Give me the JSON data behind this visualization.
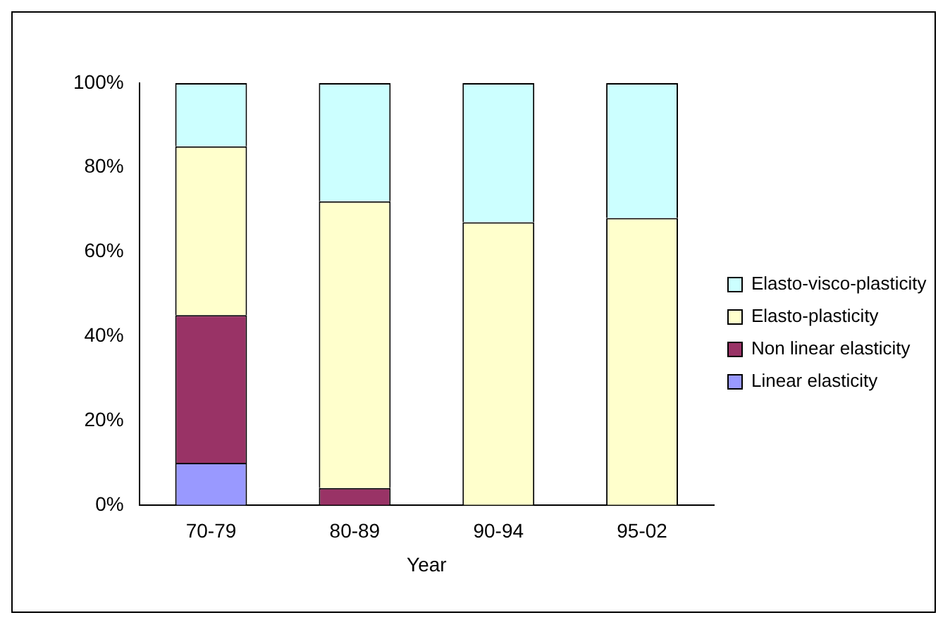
{
  "chart_data": {
    "type": "bar",
    "stacked": true,
    "xlabel": "Year",
    "categories": [
      "70-79",
      "80-89",
      "90-94",
      "95-02"
    ],
    "series": [
      {
        "name": "Linear elasticity",
        "color": "#9999ff",
        "values": [
          10,
          0,
          0,
          0
        ]
      },
      {
        "name": "Non linear elasticity",
        "color": "#993366",
        "values": [
          35,
          4,
          0,
          0
        ]
      },
      {
        "name": "Elasto-plasticity",
        "color": "#ffffcc",
        "values": [
          40,
          68,
          67,
          68
        ]
      },
      {
        "name": "Elasto-visco-plasticity",
        "color": "#ccffff",
        "values": [
          15,
          28,
          33,
          32
        ]
      }
    ],
    "ylim": [
      0,
      100
    ],
    "yticks": [
      {
        "value": 0,
        "label": "0%"
      },
      {
        "value": 20,
        "label": "20%"
      },
      {
        "value": 40,
        "label": "40%"
      },
      {
        "value": 60,
        "label": "60%"
      },
      {
        "value": 80,
        "label": "80%"
      },
      {
        "value": 100,
        "label": "100%"
      }
    ],
    "grid": false,
    "legend": "right"
  }
}
